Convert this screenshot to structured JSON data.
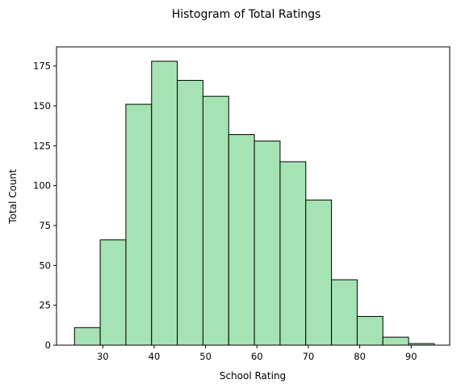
{
  "chart_data": {
    "type": "bar",
    "title": "Histogram of Total Ratings",
    "xlabel": "School Rating",
    "ylabel": "Total Count",
    "bin_edges": [
      24.5,
      29.5,
      34.5,
      39.5,
      44.5,
      49.5,
      54.5,
      59.5,
      64.5,
      69.5,
      74.5,
      79.5,
      84.5,
      89.5,
      94.5
    ],
    "values": [
      11,
      66,
      151,
      178,
      166,
      156,
      132,
      128,
      115,
      91,
      41,
      18,
      5,
      1
    ],
    "xlim": [
      21,
      97.5
    ],
    "ylim": [
      0,
      187
    ],
    "xticks": [
      30,
      40,
      50,
      60,
      70,
      80,
      90
    ],
    "yticks": [
      0,
      25,
      50,
      75,
      100,
      125,
      150,
      175
    ],
    "bar_color": "#a6e3b4",
    "edge_color": "#000000",
    "grid": false,
    "legend": "none"
  }
}
